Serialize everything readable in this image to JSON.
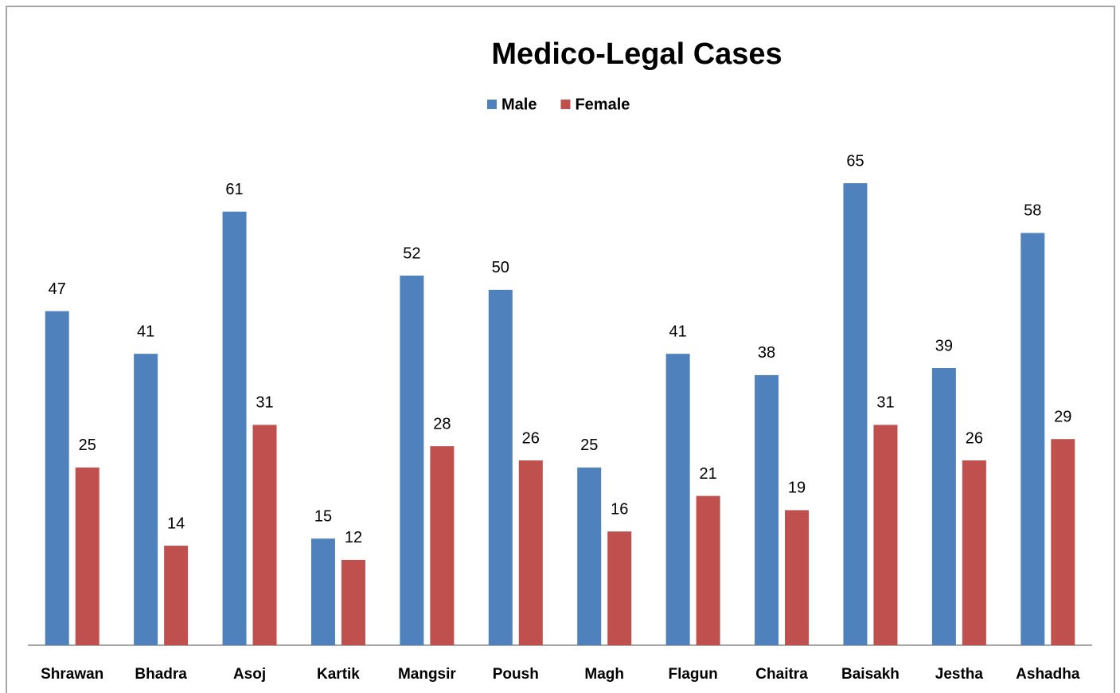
{
  "chart_data": {
    "type": "bar",
    "title": "Medico-Legal Cases",
    "categories": [
      "Shrawan",
      "Bhadra",
      "Asoj",
      "Kartik",
      "Mangsir",
      "Poush",
      "Magh",
      "Flagun",
      "Chaitra",
      "Baisakh",
      "Jestha",
      "Ashadha"
    ],
    "series": [
      {
        "name": "Male",
        "color": "#4f81bd",
        "values": [
          47,
          41,
          61,
          15,
          52,
          50,
          25,
          41,
          38,
          65,
          39,
          58
        ]
      },
      {
        "name": "Female",
        "color": "#c0504d",
        "values": [
          25,
          14,
          31,
          12,
          28,
          26,
          16,
          21,
          19,
          31,
          26,
          29
        ]
      }
    ],
    "legend": "top"
  }
}
